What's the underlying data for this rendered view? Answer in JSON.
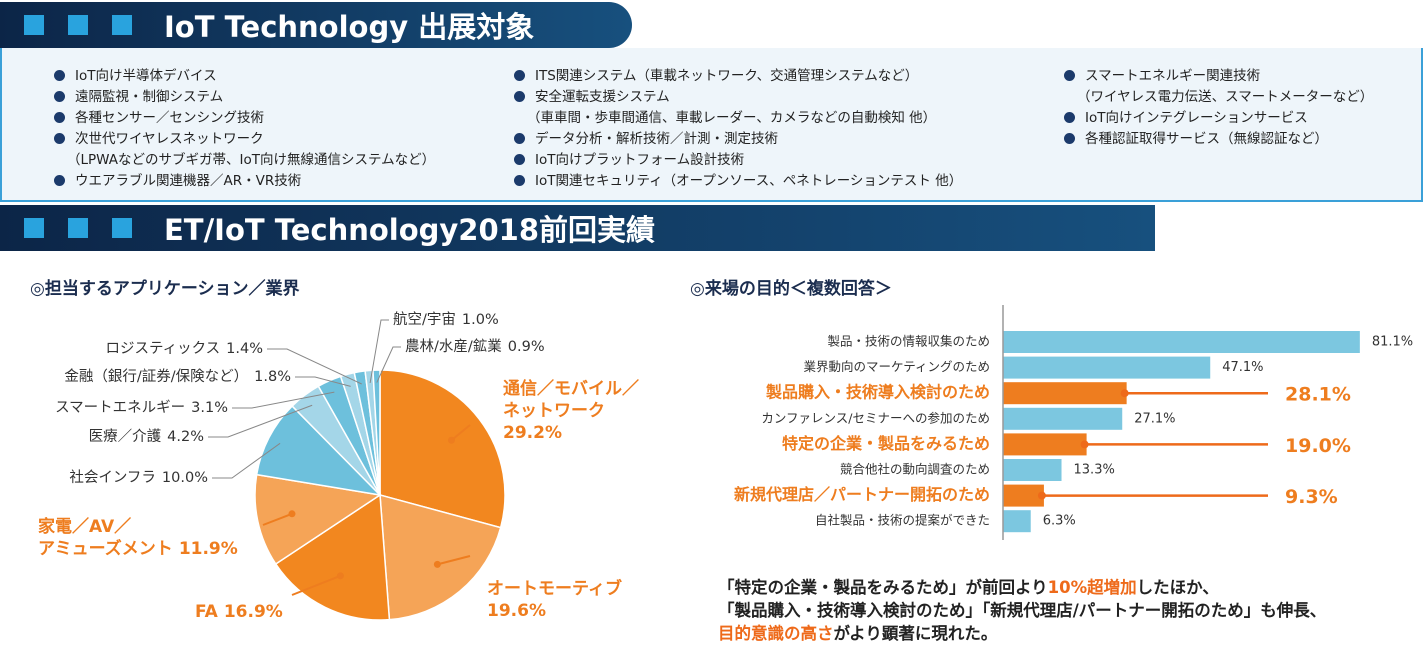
{
  "exhibits": {
    "title": "IoT Technology 出展対象",
    "columns": [
      [
        {
          "text": "IoT向け半導体デバイス"
        },
        {
          "text": "遠隔監視・制御システム"
        },
        {
          "text": "各種センサー／センシング技術"
        },
        {
          "text": "次世代ワイヤレスネットワーク",
          "sub": "（LPWAなどのサブギガ帯、IoT向け無線通信システムなど）"
        },
        {
          "text": "ウエアラブル関連機器／AR・VR技術"
        }
      ],
      [
        {
          "text": "ITS関連システム（車載ネットワーク、交通管理システムなど）"
        },
        {
          "text": "安全運転支援システム",
          "sub": "（車車間・歩車間通信、車載レーダー、カメラなどの自動検知 他）"
        },
        {
          "text": "データ分析・解析技術／計測・測定技術"
        },
        {
          "text": "IoT向けプラットフォーム設計技術"
        },
        {
          "text": "IoT関連セキュリティ（オープンソース、ペネトレーションテスト 他）"
        }
      ],
      [
        {
          "text": "スマートエネルギー関連技術",
          "sub": "（ワイヤレス電力伝送、スマートメーターなど）"
        },
        {
          "text": "IoT向けインテグレーションサービス"
        },
        {
          "text": "各種認証取得サービス（無線認証など）"
        }
      ]
    ]
  },
  "results": {
    "title": "ET/IoT Technology2018前回実績"
  },
  "chart_data": [
    {
      "type": "pie",
      "title": "◎担当するアプリケーション／業界",
      "categories": [
        "通信／モバイル／\nネットワーク",
        "オートモーティブ",
        "FA",
        "家電／AV／\nアミューズメント",
        "社会インフラ",
        "医療／介護",
        "スマートエネルギー",
        "金融（銀行/証券/保険など）",
        "ロジスティックス",
        "航空/宇宙",
        "農林/水産/鉱業"
      ],
      "values": [
        29.2,
        19.6,
        16.9,
        11.9,
        10.0,
        4.2,
        3.1,
        1.8,
        1.4,
        1.0,
        0.9
      ],
      "value_labels": [
        "29.2%",
        "19.6%",
        "16.9%",
        "11.9%",
        "10.0%",
        "4.2%",
        "3.1%",
        "1.8%",
        "1.4%",
        "1.0%",
        "0.9%"
      ],
      "colors": [
        "#f2871f",
        "#f5a457",
        "#f2871f",
        "#f5a457",
        "#6dc0dc",
        "#a4d6e8",
        "#6dc0dc",
        "#a4d6e8",
        "#6dc0dc",
        "#a4d6e8",
        "#6dc0dc"
      ]
    },
    {
      "type": "hbar",
      "title": "◎来場の目的＜複数回答＞",
      "categories": [
        "製品・技術の情報収集のため",
        "業界動向のマーケティングのため",
        "製品購入・技術導入検討のため",
        "カンファレンス/セミナーへの参加のため",
        "特定の企業・製品をみるため",
        "競合他社の動向調査のため",
        "新規代理店／パートナー開拓のため",
        "自社製品・技術の提案ができた"
      ],
      "values": [
        81.1,
        47.1,
        28.1,
        27.1,
        19.0,
        13.3,
        9.3,
        6.3
      ],
      "value_labels": [
        "81.1%",
        "47.1%",
        "28.1%",
        "27.1%",
        "19.0%",
        "13.3%",
        "9.3%",
        "6.3%"
      ],
      "colors": [
        "#7cc7e0",
        "#7cc7e0",
        "#ee7d1f",
        "#7cc7e0",
        "#ee7d1f",
        "#7cc7e0",
        "#ee7d1f",
        "#7cc7e0"
      ],
      "highlight": [
        false,
        false,
        true,
        false,
        true,
        false,
        true,
        false
      ],
      "xlim": [
        0,
        100
      ]
    }
  ],
  "note": [
    [
      {
        "text": "「特定の企業・製品をみるため」が前回より"
      },
      {
        "text": "10%超増加",
        "highlight": true
      },
      {
        "text": "したほか、"
      }
    ],
    [
      {
        "text": "「製品購入・技術導入検討のため」「新規代理店/パートナー開拓のため」も伸長、"
      }
    ],
    [
      {
        "text": "目的意識の高さ",
        "highlight": true
      },
      {
        "text": "がより顕著に現れた。"
      }
    ]
  ]
}
